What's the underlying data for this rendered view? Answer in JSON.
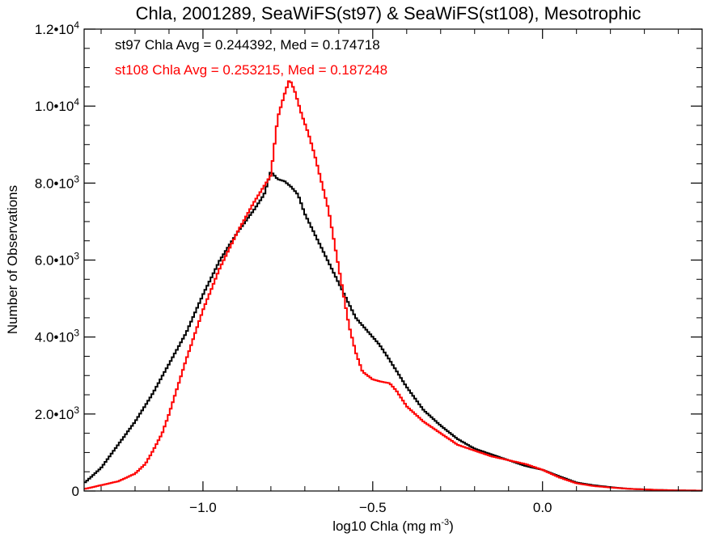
{
  "chart_data": {
    "type": "line",
    "title": "Chla, 2001289, SeaWiFS(st97) & SeaWiFS(st108), Mesotrophic",
    "xlabel": "log10 Chla (mg m",
    "xlabel_sup": "-3",
    "xlabel_close": ")",
    "ylabel": "Number of Observations",
    "xlim": [
      -1.35,
      0.47
    ],
    "ylim": [
      0,
      12000
    ],
    "x_ticks": [
      {
        "value": -1.0,
        "label": "−1.0"
      },
      {
        "value": -0.5,
        "label": "−0.5"
      },
      {
        "value": 0.0,
        "label": "0.0"
      }
    ],
    "y_ticks": [
      {
        "value": 0,
        "mant": "0",
        "exp": ""
      },
      {
        "value": 2000,
        "mant": "2.0•10",
        "exp": "3"
      },
      {
        "value": 4000,
        "mant": "4.0•10",
        "exp": "3"
      },
      {
        "value": 6000,
        "mant": "6.0•10",
        "exp": "3"
      },
      {
        "value": 8000,
        "mant": "8.0•10",
        "exp": "3"
      },
      {
        "value": 10000,
        "mant": "1.0•10",
        "exp": "4"
      },
      {
        "value": 12000,
        "mant": "1.2•10",
        "exp": "4"
      }
    ],
    "annotations": [
      {
        "text": "st97 Chla Avg = 0.244392, Med = 0.174718",
        "color": "#000000"
      },
      {
        "text": "st108 Chla Avg = 0.253215, Med = 0.187248",
        "color": "#ff0000"
      }
    ],
    "series": [
      {
        "color": "#000000",
        "x": [
          -1.35,
          -1.3,
          -1.25,
          -1.2,
          -1.15,
          -1.1,
          -1.05,
          -1.0,
          -0.95,
          -0.9,
          -0.85,
          -0.82,
          -0.8,
          -0.78,
          -0.76,
          -0.74,
          -0.72,
          -0.7,
          -0.65,
          -0.6,
          -0.55,
          -0.5,
          -0.48,
          -0.45,
          -0.4,
          -0.35,
          -0.3,
          -0.25,
          -0.2,
          -0.15,
          -0.1,
          -0.05,
          0.0,
          0.05,
          0.1,
          0.15,
          0.2,
          0.25,
          0.3,
          0.35,
          0.4,
          0.47
        ],
        "values": [
          200,
          600,
          1200,
          1800,
          2500,
          3300,
          4100,
          5100,
          6000,
          6700,
          7300,
          7700,
          8300,
          8100,
          8050,
          7900,
          7700,
          7200,
          6300,
          5400,
          4500,
          4000,
          3800,
          3400,
          2700,
          2100,
          1700,
          1350,
          1100,
          950,
          800,
          650,
          550,
          380,
          220,
          150,
          100,
          60,
          40,
          25,
          15,
          10
        ]
      },
      {
        "color": "#ff0000",
        "x": [
          -1.35,
          -1.3,
          -1.25,
          -1.2,
          -1.17,
          -1.15,
          -1.12,
          -1.1,
          -1.05,
          -1.0,
          -0.95,
          -0.9,
          -0.85,
          -0.8,
          -0.78,
          -0.76,
          -0.745,
          -0.73,
          -0.71,
          -0.69,
          -0.67,
          -0.65,
          -0.63,
          -0.61,
          -0.59,
          -0.57,
          -0.55,
          -0.53,
          -0.5,
          -0.48,
          -0.45,
          -0.43,
          -0.4,
          -0.35,
          -0.3,
          -0.25,
          -0.2,
          -0.15,
          -0.1,
          -0.05,
          0.0,
          0.05,
          0.1,
          0.15,
          0.2,
          0.25,
          0.3,
          0.35,
          0.4,
          0.47
        ],
        "values": [
          50,
          150,
          250,
          450,
          700,
          1000,
          1500,
          2000,
          3400,
          4700,
          5800,
          6700,
          7500,
          8200,
          9700,
          10300,
          10700,
          10400,
          9800,
          9300,
          8700,
          8000,
          7300,
          6300,
          5300,
          4300,
          3600,
          3100,
          2900,
          2850,
          2800,
          2600,
          2200,
          1800,
          1500,
          1200,
          1050,
          900,
          800,
          700,
          550,
          350,
          200,
          130,
          90,
          60,
          40,
          25,
          15,
          10
        ]
      }
    ]
  }
}
